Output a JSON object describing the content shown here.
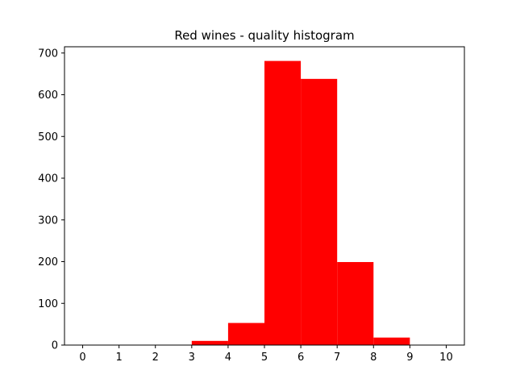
{
  "chart_data": {
    "type": "bar",
    "title": "Red wines - quality histogram",
    "xlabel": "",
    "ylabel": "",
    "bins": [
      {
        "start": 3,
        "end": 4,
        "value": 10
      },
      {
        "start": 4,
        "end": 5,
        "value": 53
      },
      {
        "start": 5,
        "end": 6,
        "value": 681
      },
      {
        "start": 6,
        "end": 7,
        "value": 638
      },
      {
        "start": 7,
        "end": 8,
        "value": 199
      },
      {
        "start": 8,
        "end": 9,
        "value": 18
      }
    ],
    "xlim": [
      -0.5,
      10.5
    ],
    "ylim": [
      0,
      715
    ],
    "xticks": [
      "0",
      "1",
      "2",
      "3",
      "4",
      "5",
      "6",
      "7",
      "8",
      "9",
      "10"
    ],
    "yticks": [
      "0",
      "100",
      "200",
      "300",
      "400",
      "500",
      "600",
      "700"
    ],
    "bar_color": "#ff0000",
    "grid": false,
    "legend": "none"
  }
}
